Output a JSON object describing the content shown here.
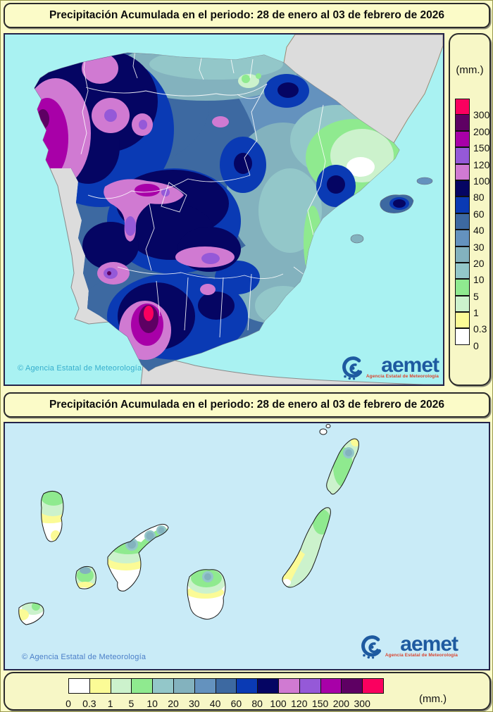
{
  "page": {
    "background": "#fbfbc8",
    "frame_color": "#99994f"
  },
  "titles": {
    "peninsula": "Precipitación Acumulada en el periodo: 28 de enero al 03 de febrero de 2026",
    "canarias": "Precipitación Acumulada en el periodo: 28 de enero al 03 de febrero de 2026"
  },
  "scale": {
    "unit": "(mm.)",
    "levels": [
      "0",
      "0.3",
      "1",
      "5",
      "10",
      "20",
      "30",
      "40",
      "60",
      "80",
      "100",
      "120",
      "150",
      "200",
      "300"
    ],
    "colors": [
      "#ffffff",
      "#fbfb96",
      "#ccf2cc",
      "#8fea8f",
      "#93c7c9",
      "#83b2be",
      "#6492be",
      "#3d69a1",
      "#0a3ab4",
      "#050563",
      "#d07ad2",
      "#9559d8",
      "#a800a8",
      "#5e0063",
      "#fa005f"
    ]
  },
  "branding": {
    "copyright": "© Agencia Estatal de Meteorología",
    "logo_text": "aemet",
    "logo_subtitle": "Agencia Estatal de Meteorología",
    "logo_color": "#1e5aa0",
    "logo_subtitle_color": "#d9442f"
  },
  "peninsula_map": {
    "sea_color": "#a9f2f2",
    "outside_land_color": "#dcdcdc",
    "copyright_color": "#35aecd"
  },
  "canary_map": {
    "sea_color": "#c9ebf7",
    "island_base_color": "#ffffff",
    "copyright_color": "#4a7ec8"
  }
}
